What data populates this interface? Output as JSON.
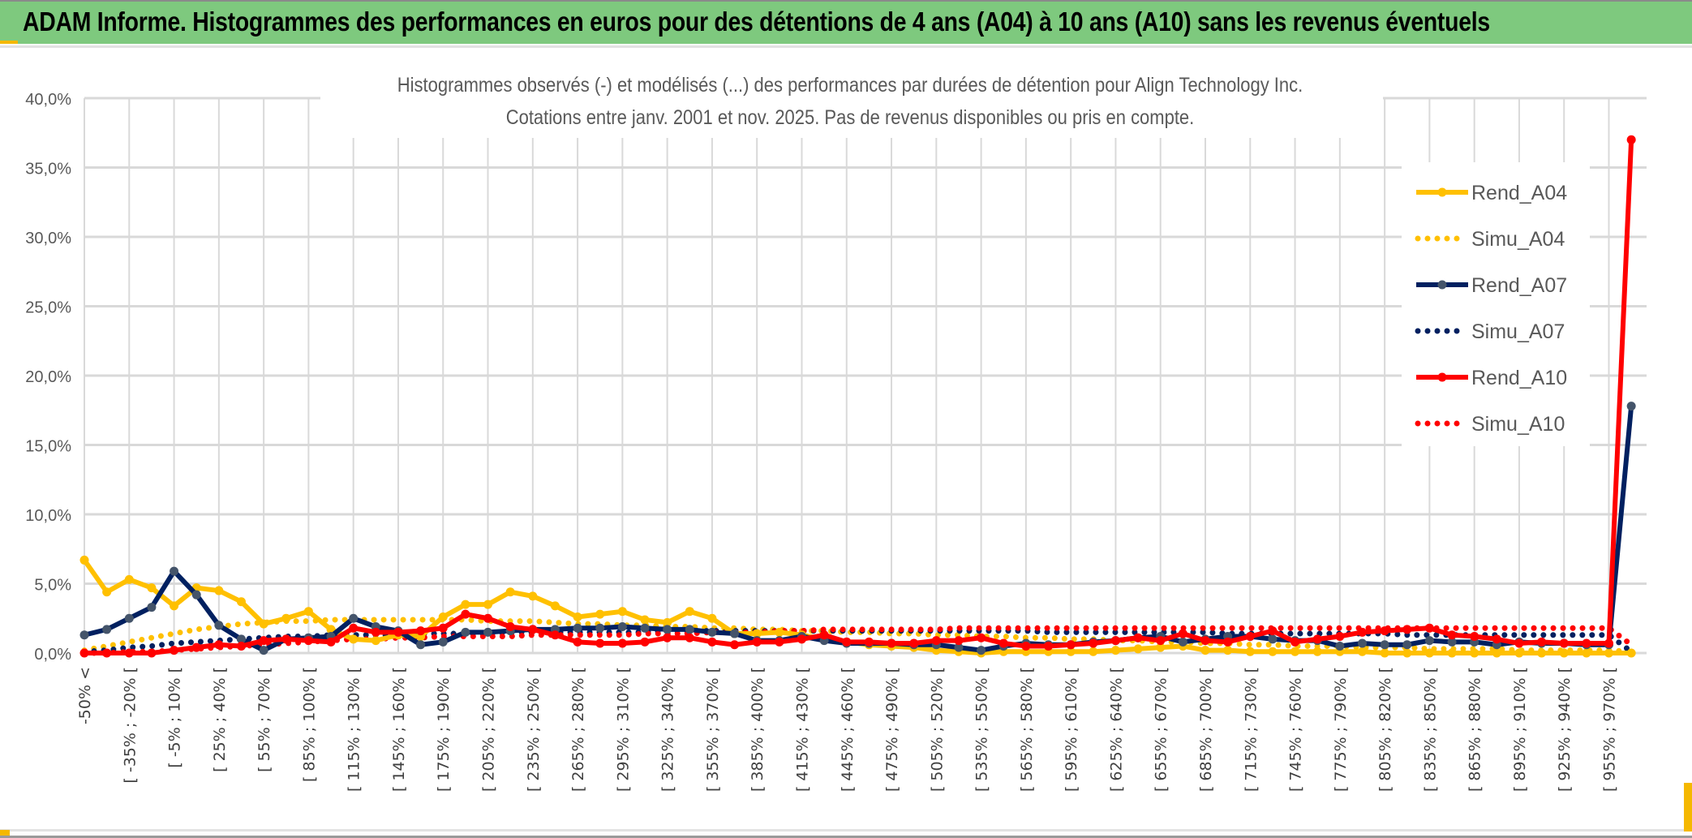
{
  "header": {
    "title": "ADAM Informe. Histogrammes des performances en euros pour des détentions de 4 ans (A04) à 10 ans (A10) sans les revenus éventuels"
  },
  "chart_data": {
    "type": "line",
    "title_lines": [
      "Histogrammes observés (-) et modélisés (...) des performances par durées de détention pour Align Technology Inc.",
      "Cotations entre janv. 2001 et nov. 2025. Pas de revenus disponibles ou pris en compte."
    ],
    "xlabel": "",
    "ylabel": "",
    "ylim": [
      0,
      40
    ],
    "yticks": [
      "0,0%",
      "5,0%",
      "10,0%",
      "15,0%",
      "20,0%",
      "25,0%",
      "30,0%",
      "35,0%",
      "40,0%"
    ],
    "grid": true,
    "legend_position": "right",
    "label_every": 2,
    "category_first": "-50% <",
    "category_start": -50,
    "category_step": 15,
    "category_count": 70,
    "series": [
      {
        "name": "Rend_A04",
        "color": "#ffc000",
        "style": "solid",
        "values": [
          6.7,
          4.4,
          5.3,
          4.7,
          3.4,
          4.7,
          4.5,
          3.7,
          2.1,
          2.5,
          3.0,
          1.7,
          1.0,
          0.9,
          1.3,
          1.2,
          2.6,
          3.5,
          3.5,
          4.4,
          4.1,
          3.4,
          2.6,
          2.8,
          3.0,
          2.4,
          2.2,
          3.0,
          2.5,
          1.4,
          1.4,
          1.5,
          1.3,
          1.0,
          0.8,
          0.6,
          0.5,
          0.4,
          0.2,
          0.1,
          0.0,
          0.1,
          0.1,
          0.1,
          0.1,
          0.1,
          0.2,
          0.3,
          0.4,
          0.5,
          0.2,
          0.2,
          0.1,
          0.1,
          0.1,
          0.1,
          0.1,
          0.1,
          0.0,
          0.0,
          0.0,
          0.0,
          0.0,
          0.0,
          0.0,
          0.0,
          0.0,
          0.0,
          0.0,
          0.0
        ]
      },
      {
        "name": "Simu_A04",
        "color": "#ffc000",
        "style": "dotted",
        "values": [
          0.2,
          0.5,
          0.8,
          1.1,
          1.4,
          1.7,
          1.9,
          2.1,
          2.2,
          2.3,
          2.3,
          2.4,
          2.4,
          2.4,
          2.4,
          2.4,
          2.4,
          2.4,
          2.3,
          2.3,
          2.3,
          2.2,
          2.1,
          2.1,
          2.0,
          2.0,
          1.9,
          1.9,
          1.8,
          1.8,
          1.7,
          1.7,
          1.6,
          1.6,
          1.5,
          1.5,
          1.4,
          1.4,
          1.3,
          1.3,
          1.2,
          1.2,
          1.1,
          1.1,
          1.0,
          1.0,
          0.9,
          0.9,
          0.8,
          0.8,
          0.7,
          0.7,
          0.6,
          0.6,
          0.5,
          0.5,
          0.5,
          0.4,
          0.4,
          0.4,
          0.3,
          0.3,
          0.3,
          0.3,
          0.2,
          0.2,
          0.2,
          0.2,
          0.2,
          0.1
        ]
      },
      {
        "name": "Rend_A07",
        "color": "#002060",
        "style": "solid",
        "values": [
          1.3,
          1.7,
          2.5,
          3.3,
          5.9,
          4.2,
          2.0,
          1.0,
          0.2,
          1.0,
          1.1,
          1.2,
          2.5,
          1.9,
          1.6,
          0.6,
          0.8,
          1.5,
          1.5,
          1.6,
          1.7,
          1.7,
          1.8,
          1.8,
          1.9,
          1.8,
          1.7,
          1.7,
          1.5,
          1.4,
          0.9,
          0.9,
          1.2,
          0.9,
          0.7,
          0.7,
          0.7,
          0.6,
          0.6,
          0.4,
          0.2,
          0.5,
          0.7,
          0.6,
          0.6,
          0.8,
          0.9,
          1.1,
          1.2,
          0.8,
          1.0,
          1.2,
          1.2,
          1.0,
          0.9,
          0.9,
          0.5,
          0.7,
          0.6,
          0.6,
          0.9,
          0.8,
          0.8,
          0.6,
          0.8,
          0.7,
          0.7,
          0.6,
          0.6,
          17.8
        ]
      },
      {
        "name": "Simu_A07",
        "color": "#002060",
        "style": "dotted",
        "values": [
          0.1,
          0.2,
          0.4,
          0.5,
          0.7,
          0.8,
          0.9,
          1.0,
          1.1,
          1.2,
          1.2,
          1.3,
          1.3,
          1.3,
          1.3,
          1.4,
          1.4,
          1.4,
          1.4,
          1.5,
          1.5,
          1.5,
          1.5,
          1.5,
          1.5,
          1.5,
          1.6,
          1.6,
          1.6,
          1.6,
          1.6,
          1.6,
          1.6,
          1.6,
          1.6,
          1.6,
          1.6,
          1.6,
          1.6,
          1.6,
          1.6,
          1.6,
          1.6,
          1.5,
          1.5,
          1.5,
          1.5,
          1.5,
          1.5,
          1.5,
          1.5,
          1.4,
          1.4,
          1.4,
          1.4,
          1.4,
          1.4,
          1.4,
          1.4,
          1.3,
          1.3,
          1.3,
          1.3,
          1.3,
          1.3,
          1.3,
          1.3,
          1.3,
          1.3,
          0.1
        ]
      },
      {
        "name": "Rend_A10",
        "color": "#ff0000",
        "style": "solid",
        "values": [
          0.0,
          0.0,
          0.0,
          0.0,
          0.2,
          0.4,
          0.6,
          0.5,
          0.9,
          1.0,
          0.9,
          0.8,
          1.8,
          1.5,
          1.5,
          1.6,
          1.8,
          2.8,
          2.5,
          1.9,
          1.7,
          1.3,
          0.8,
          0.7,
          0.7,
          0.8,
          1.1,
          1.1,
          0.8,
          0.6,
          0.8,
          0.8,
          1.0,
          1.3,
          0.8,
          0.8,
          0.7,
          0.7,
          0.9,
          0.9,
          1.1,
          0.7,
          0.5,
          0.5,
          0.6,
          0.7,
          0.9,
          1.1,
          0.9,
          1.4,
          0.9,
          0.8,
          1.2,
          1.6,
          0.8,
          1.0,
          1.2,
          1.5,
          1.6,
          1.7,
          1.8,
          1.3,
          1.2,
          1.0,
          0.7,
          0.8,
          0.7,
          0.7,
          0.7,
          37.0
        ]
      },
      {
        "name": "Simu_A10",
        "color": "#ff0000",
        "style": "dotted",
        "values": [
          0.0,
          0.0,
          0.1,
          0.1,
          0.2,
          0.3,
          0.4,
          0.5,
          0.6,
          0.7,
          0.8,
          0.9,
          1.0,
          1.0,
          1.1,
          1.1,
          1.2,
          1.2,
          1.2,
          1.2,
          1.3,
          1.3,
          1.3,
          1.3,
          1.3,
          1.4,
          1.4,
          1.4,
          1.5,
          1.5,
          1.5,
          1.6,
          1.6,
          1.7,
          1.7,
          1.7,
          1.7,
          1.7,
          1.7,
          1.8,
          1.8,
          1.8,
          1.8,
          1.8,
          1.8,
          1.8,
          1.8,
          1.8,
          1.8,
          1.8,
          1.8,
          1.8,
          1.8,
          1.8,
          1.8,
          1.8,
          1.8,
          1.8,
          1.8,
          1.8,
          1.8,
          1.8,
          1.8,
          1.8,
          1.8,
          1.8,
          1.8,
          1.8,
          1.8,
          0.6
        ]
      }
    ]
  }
}
